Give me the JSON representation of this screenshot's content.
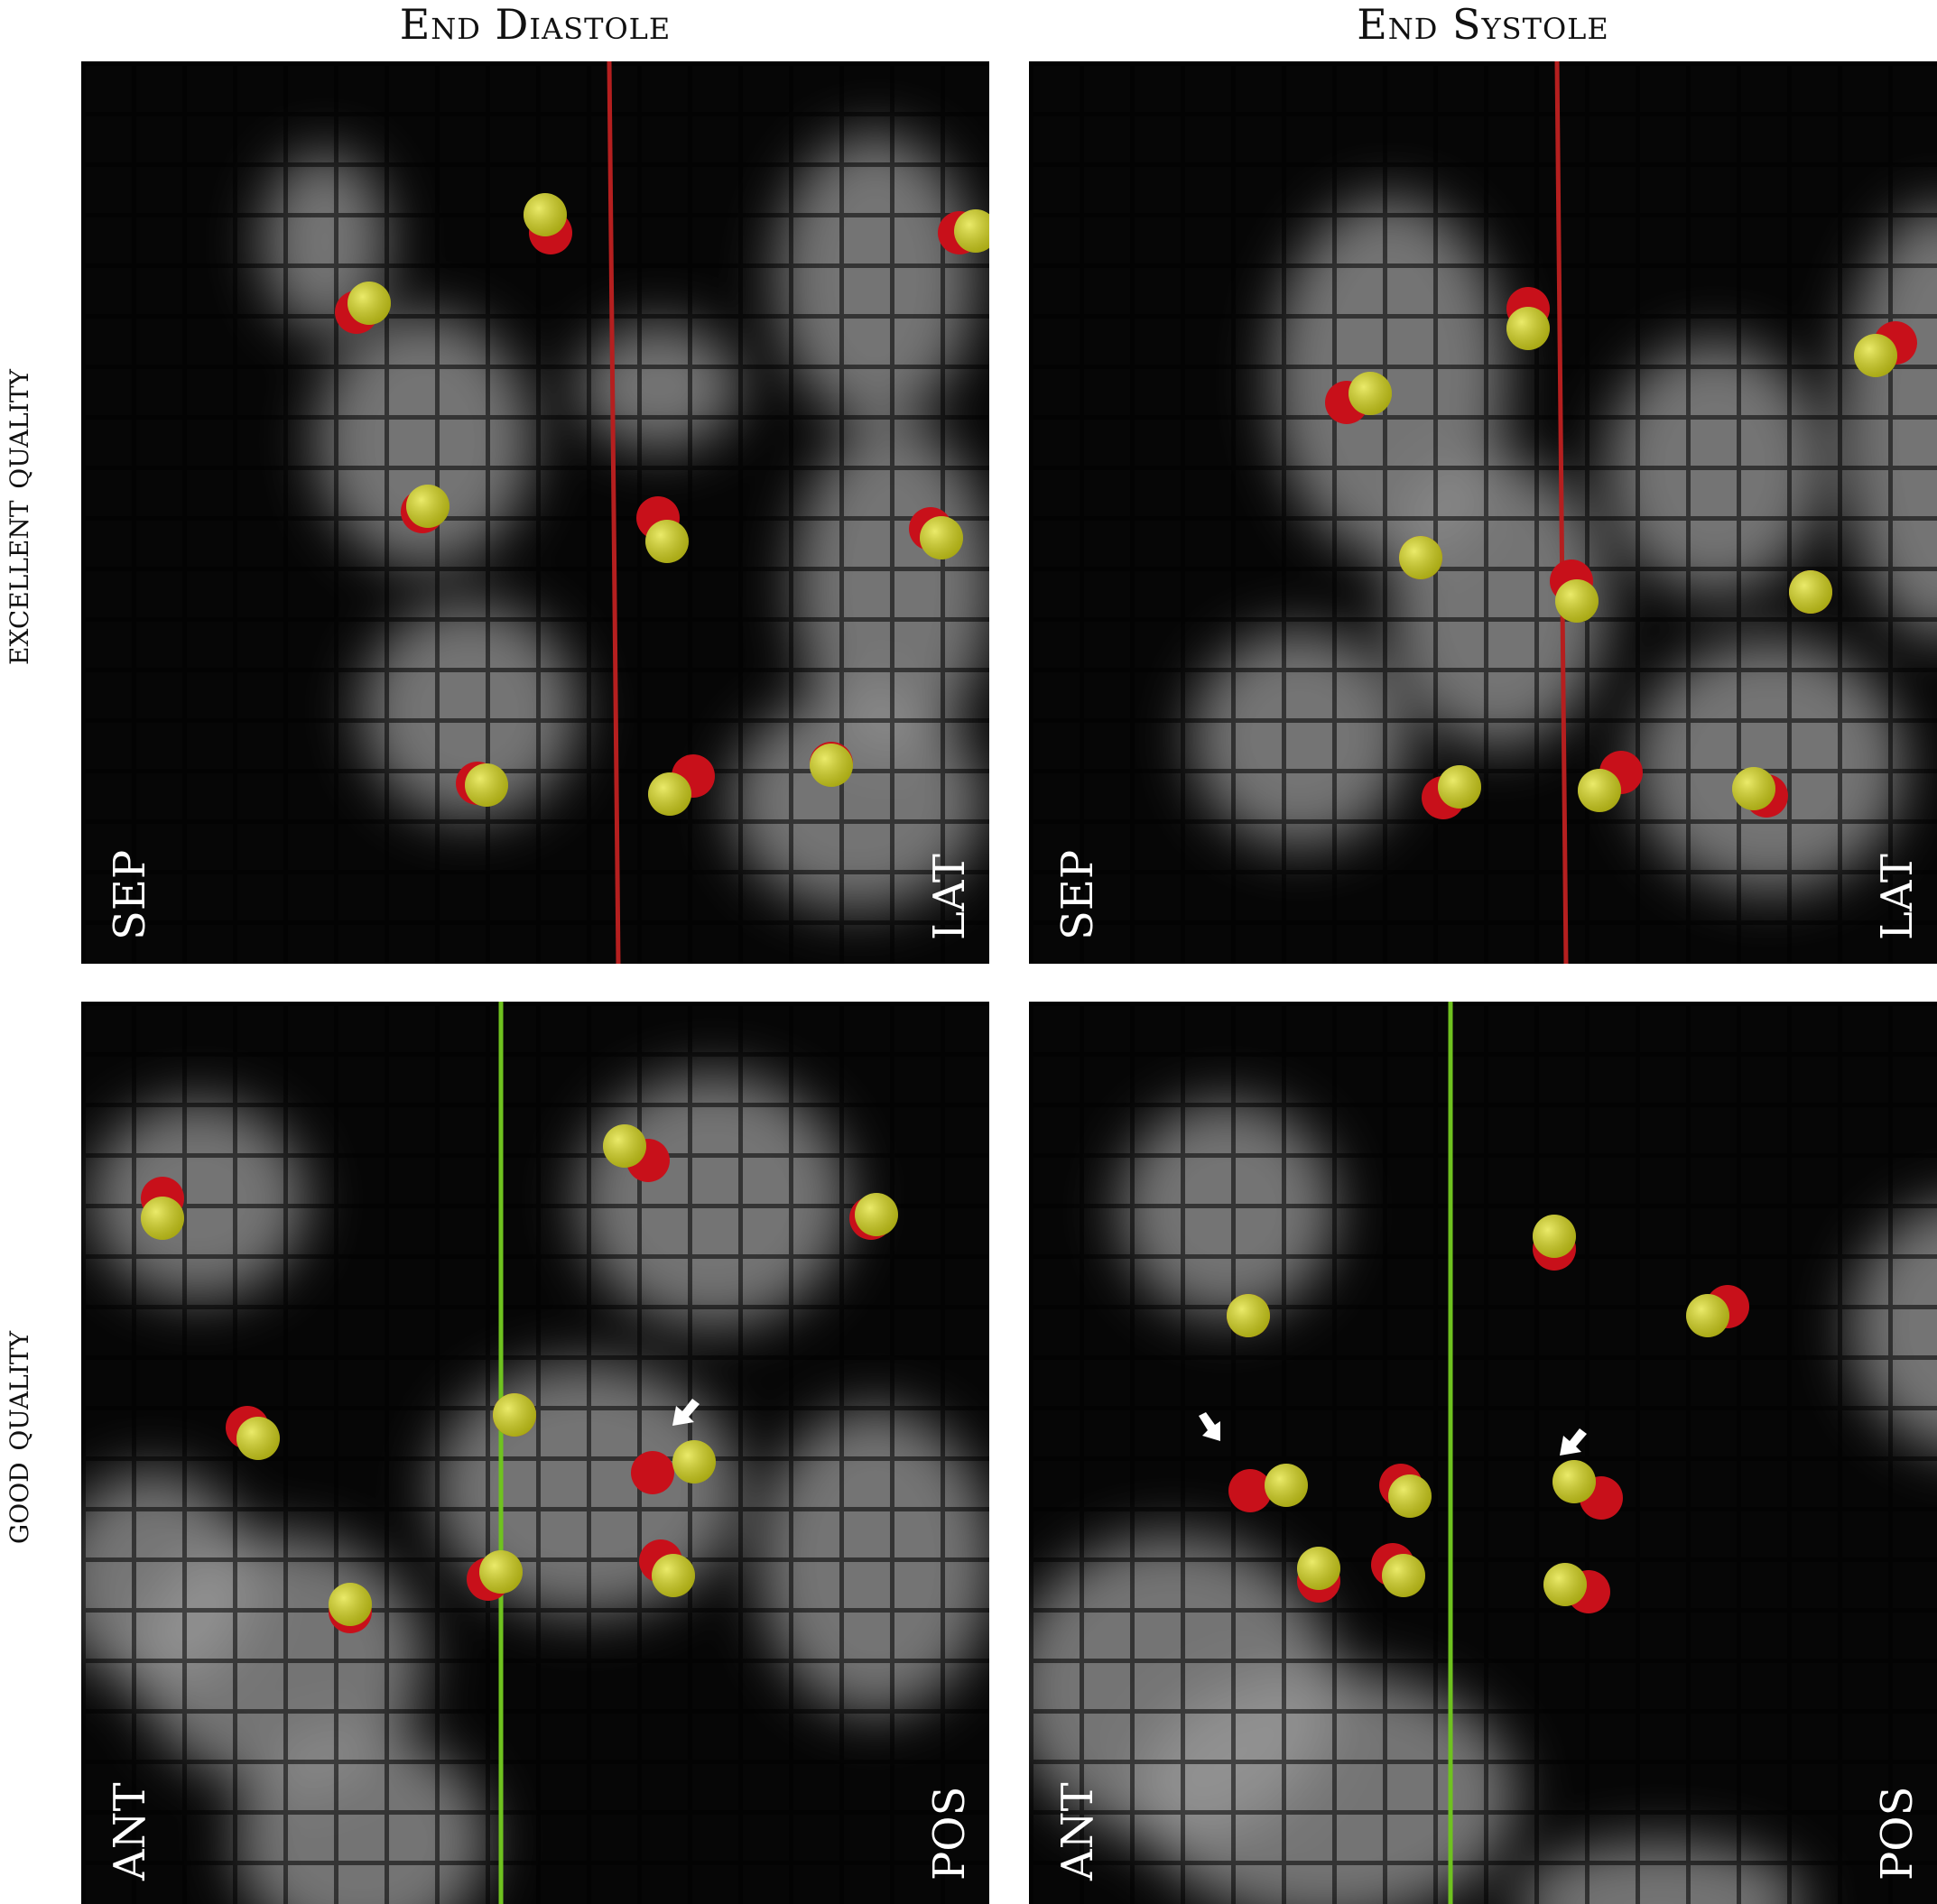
{
  "columns": [
    "End Diastole",
    "End Systole"
  ],
  "rows": [
    "excellent quality",
    "good quality"
  ],
  "panels": [
    {
      "left": "SEP",
      "right": "LAT",
      "line_color": "#b51f1f"
    },
    {
      "left": "SEP",
      "right": "LAT",
      "line_color": "#b51f1f"
    },
    {
      "left": "ANT",
      "right": "POS",
      "line_color": "#6fc21f"
    },
    {
      "left": "ANT",
      "right": "POS",
      "line_color": "#6fc21f"
    }
  ],
  "colors": {
    "red_marker": "#c8101a",
    "yellow_marker": "#e0e01a",
    "background": "#060606",
    "arrow": "#ffffff"
  }
}
